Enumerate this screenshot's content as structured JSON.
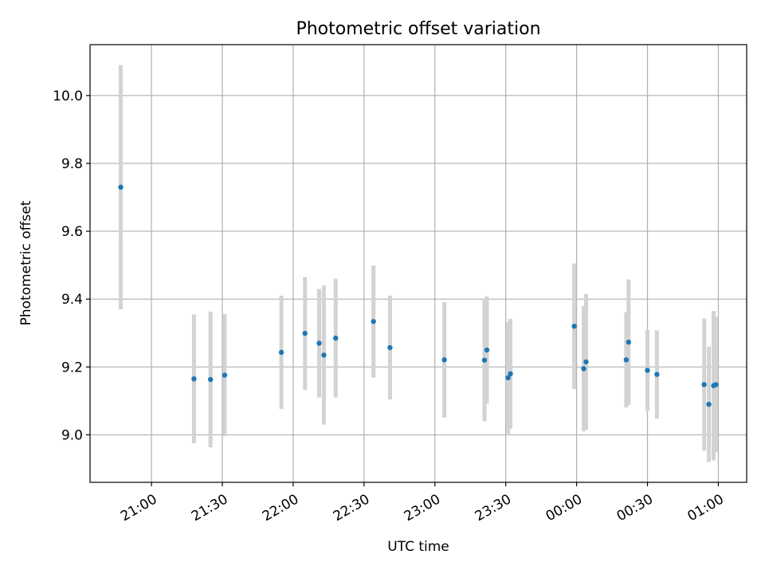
{
  "chart_data": {
    "type": "scatter",
    "title": "Photometric offset variation",
    "xlabel": "UTC time",
    "ylabel": "Photometric offset",
    "x_axis_type": "time",
    "xlim": [
      "20:34",
      "01:12"
    ],
    "ylim": [
      8.86,
      10.15
    ],
    "xticks": [
      "21:00",
      "21:30",
      "22:00",
      "22:30",
      "23:00",
      "23:30",
      "00:00",
      "00:30",
      "01:00"
    ],
    "yticks": [
      "9.0",
      "9.2",
      "9.4",
      "9.6",
      "9.8",
      "10.0"
    ],
    "grid": true,
    "legend": "none",
    "colors": {
      "marker": "#1f77b4",
      "errorbar": "#d3d3d3",
      "grid": "#b0b0b0"
    },
    "series": [
      {
        "points": [
          {
            "x": "20:47",
            "y": 9.73,
            "yerr": 0.36
          },
          {
            "x": "21:18",
            "y": 9.165,
            "yerr": 0.19
          },
          {
            "x": "21:25",
            "y": 9.163,
            "yerr": 0.2
          },
          {
            "x": "21:31",
            "y": 9.176,
            "yerr": 0.18
          },
          {
            "x": "21:55",
            "y": 9.243,
            "yerr": 0.167
          },
          {
            "x": "22:05",
            "y": 9.299,
            "yerr": 0.166
          },
          {
            "x": "22:11",
            "y": 9.27,
            "yerr": 0.16
          },
          {
            "x": "22:13",
            "y": 9.235,
            "yerr": 0.205
          },
          {
            "x": "22:18",
            "y": 9.285,
            "yerr": 0.175
          },
          {
            "x": "22:34",
            "y": 9.334,
            "yerr": 0.165
          },
          {
            "x": "22:41",
            "y": 9.257,
            "yerr": 0.153
          },
          {
            "x": "23:04",
            "y": 9.221,
            "yerr": 0.17
          },
          {
            "x": "23:21",
            "y": 9.22,
            "yerr": 0.18
          },
          {
            "x": "23:22",
            "y": 9.25,
            "yerr": 0.158
          },
          {
            "x": "23:31",
            "y": 9.168,
            "yerr": 0.165
          },
          {
            "x": "23:32",
            "y": 9.18,
            "yerr": 0.162
          },
          {
            "x": "23:59",
            "y": 9.32,
            "yerr": 0.185
          },
          {
            "x": "00:03",
            "y": 9.195,
            "yerr": 0.185
          },
          {
            "x": "00:04",
            "y": 9.215,
            "yerr": 0.2
          },
          {
            "x": "00:21",
            "y": 9.221,
            "yerr": 0.14
          },
          {
            "x": "00:22",
            "y": 9.273,
            "yerr": 0.185
          },
          {
            "x": "00:30",
            "y": 9.19,
            "yerr": 0.12
          },
          {
            "x": "00:34",
            "y": 9.178,
            "yerr": 0.13
          },
          {
            "x": "00:54",
            "y": 9.148,
            "yerr": 0.195
          },
          {
            "x": "00:56",
            "y": 9.09,
            "yerr": 0.17
          },
          {
            "x": "00:58",
            "y": 9.145,
            "yerr": 0.22
          },
          {
            "x": "00:59",
            "y": 9.148,
            "yerr": 0.2
          }
        ]
      }
    ]
  }
}
